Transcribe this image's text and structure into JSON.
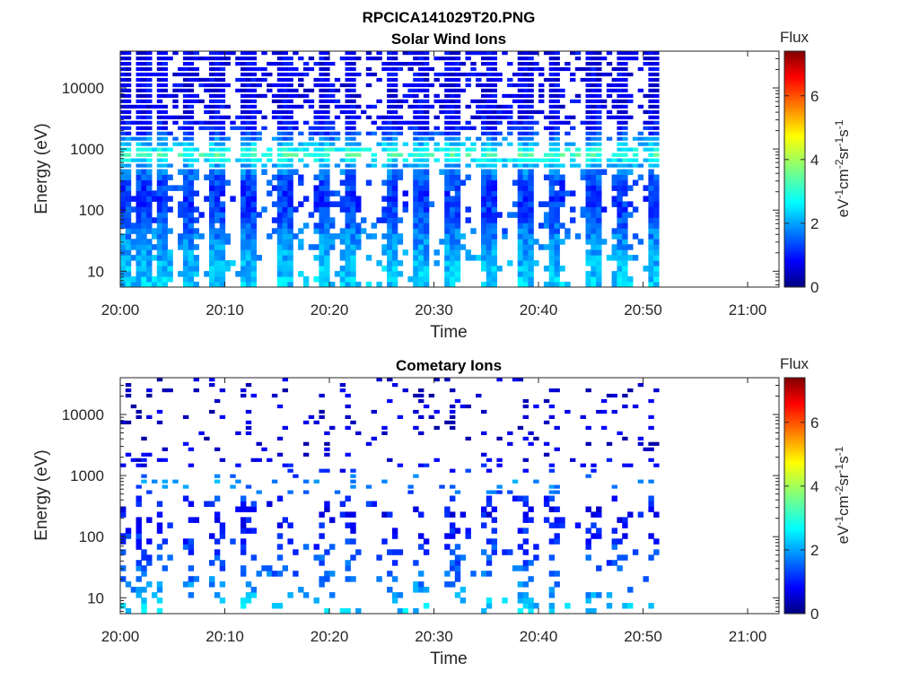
{
  "figure_title": "RPCICA141029T20.PNG",
  "chart_data": [
    {
      "type": "heatmap",
      "title": "Solar Wind Ions",
      "xlabel": "Time",
      "ylabel": "Energy (eV)",
      "x_ticks": [
        "20:00",
        "20:10",
        "20:20",
        "20:30",
        "20:40",
        "20:50",
        "21:00"
      ],
      "x_range": [
        "20:00",
        "21:03"
      ],
      "data_time_range": [
        "20:00",
        "20:51"
      ],
      "y_scale": "log",
      "y_ticks": [
        "10",
        "100",
        "1000",
        "10000"
      ],
      "y_range": [
        5.5,
        40000
      ],
      "colorbar": {
        "label": "Flux",
        "unit": "eV-1cm-2sr-1s-1",
        "range": [
          0,
          7.4
        ],
        "ticks": [
          "0",
          "2",
          "4",
          "6"
        ],
        "colormap": "jet"
      },
      "sweep_times_min": [
        0.1,
        2.0,
        3.7,
        6.2,
        9.1,
        12.1,
        15.6,
        19.1,
        21.9,
        25.6,
        28.5,
        31.5,
        35.0,
        38.5,
        41.3,
        45.0,
        47.9,
        51.0
      ],
      "intensity_profile": {
        "energy_eV": [
          8,
          15,
          30,
          60,
          100,
          170,
          300,
          550,
          800,
          1200,
          2000,
          3500,
          6000,
          10000,
          18000,
          30000
        ],
        "flux": [
          2.4,
          2.2,
          2.0,
          1.6,
          1.4,
          1.3,
          1.4,
          2.2,
          3.3,
          2.2,
          1.1,
          0.8,
          0.8,
          0.8,
          0.8,
          0.8
        ]
      }
    },
    {
      "type": "heatmap",
      "title": "Cometary Ions",
      "xlabel": "Time",
      "ylabel": "Energy (eV)",
      "x_ticks": [
        "20:00",
        "20:10",
        "20:20",
        "20:30",
        "20:40",
        "20:50",
        "21:00"
      ],
      "x_range": [
        "20:00",
        "21:03"
      ],
      "data_time_range": [
        "20:00",
        "20:51"
      ],
      "y_scale": "log",
      "y_ticks": [
        "10",
        "100",
        "1000",
        "10000"
      ],
      "y_range": [
        5.5,
        40000
      ],
      "colorbar": {
        "label": "Flux",
        "unit": "eV-1cm-2sr-1s-1",
        "range": [
          0,
          7.4
        ],
        "ticks": [
          "0",
          "2",
          "4",
          "6"
        ],
        "colormap": "jet"
      },
      "sweep_times_min": [
        0.1,
        2.0,
        3.7,
        6.2,
        9.1,
        12.1,
        15.6,
        19.1,
        21.9,
        25.6,
        28.5,
        31.5,
        35.0,
        38.5,
        41.3,
        45.0,
        47.9,
        51.0
      ],
      "intensity_profile": {
        "energy_eV": [
          8,
          15,
          30,
          60,
          100,
          170,
          300,
          550,
          800,
          1200,
          2000,
          3500,
          6000,
          10000,
          18000,
          30000
        ],
        "flux": [
          2.4,
          1.9,
          1.6,
          1.4,
          1.2,
          1.0,
          0.9,
          1.6,
          2.0,
          1.0,
          0.7,
          0.6,
          0.6,
          0.6,
          0.6,
          0.6
        ]
      }
    }
  ]
}
